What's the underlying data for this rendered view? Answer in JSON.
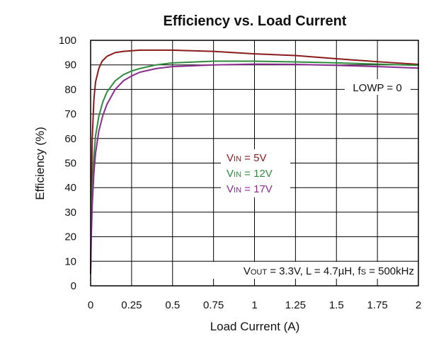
{
  "chart_data": {
    "type": "line",
    "title": "Efficiency vs. Load Current",
    "xlabel": "Load Current (A)",
    "ylabel": "Efficiency (%)",
    "xlim": [
      0,
      2
    ],
    "ylim": [
      0,
      100
    ],
    "x_ticks": [
      0,
      0.25,
      0.5,
      0.75,
      1,
      1.25,
      1.5,
      1.75,
      2
    ],
    "x_tick_labels": [
      "0",
      "0.25",
      "0.5",
      "0.75",
      "1",
      "1.25",
      "1.5",
      "1.75",
      "2"
    ],
    "y_ticks": [
      0,
      10,
      20,
      30,
      40,
      50,
      60,
      70,
      80,
      90,
      100
    ],
    "y_tick_labels": [
      "0",
      "10",
      "20",
      "30",
      "40",
      "50",
      "60",
      "70",
      "80",
      "90",
      "100"
    ],
    "grid": true,
    "annotations": {
      "lowp": "LOWP = 0",
      "conditions": {
        "v_main": "V",
        "v_sub": "OUT",
        "v_rest": " = 3.3V, L = 4.7µH, f",
        "f_sub": "S",
        "f_rest": " = 500kHz"
      }
    },
    "series": [
      {
        "name": "VIN = 5V",
        "label_main": "V",
        "label_sub": "IN",
        "label_rest": " = 5V",
        "color": "#8b1a1a",
        "x": [
          0,
          0.005,
          0.01,
          0.02,
          0.03,
          0.05,
          0.07,
          0.1,
          0.15,
          0.2,
          0.3,
          0.5,
          0.75,
          1,
          1.25,
          1.5,
          1.75,
          2
        ],
        "y": [
          5,
          40,
          60,
          76,
          83,
          88.5,
          91.5,
          93.5,
          95,
          95.5,
          96,
          96,
          95.5,
          94.5,
          93.8,
          92.5,
          91.3,
          90.2
        ]
      },
      {
        "name": "VIN = 12V",
        "label_main": "V",
        "label_sub": "IN",
        "label_rest": " = 12V",
        "color": "#2e8b3c",
        "x": [
          0,
          0.005,
          0.01,
          0.02,
          0.03,
          0.05,
          0.075,
          0.1,
          0.15,
          0.2,
          0.25,
          0.3,
          0.4,
          0.5,
          0.75,
          1,
          1.25,
          1.5,
          1.75,
          2
        ],
        "y": [
          8,
          28,
          40,
          53,
          61,
          69,
          75,
          79,
          83.5,
          86,
          87.5,
          88.5,
          90,
          90.8,
          91.5,
          91.5,
          91.2,
          90.8,
          90.3,
          89.8
        ]
      },
      {
        "name": "VIN = 17V",
        "label_main": "V",
        "label_sub": "IN",
        "label_rest": " = 17V",
        "color": "#8b2b8f",
        "x": [
          0,
          0.005,
          0.01,
          0.02,
          0.03,
          0.05,
          0.075,
          0.1,
          0.15,
          0.2,
          0.25,
          0.3,
          0.4,
          0.5,
          0.75,
          1,
          1.25,
          1.5,
          1.75,
          2
        ],
        "y": [
          5,
          22,
          33,
          46,
          54,
          63,
          69.5,
          74,
          80,
          83.5,
          85.5,
          87,
          88.5,
          89.3,
          90,
          90.3,
          90.2,
          89.8,
          89.3,
          88.7
        ]
      }
    ]
  }
}
